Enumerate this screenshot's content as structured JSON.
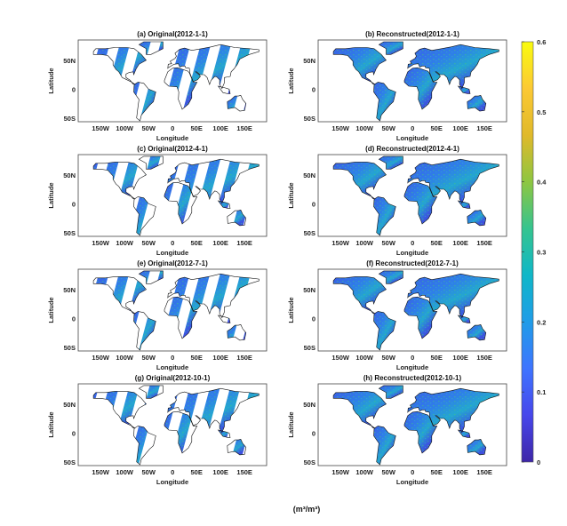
{
  "chart_data": {
    "type": "heatmap",
    "description_units": "(m³/m³)",
    "xlabel": "Longitude",
    "ylabel": "Latitude",
    "xlim": [
      -180,
      180
    ],
    "ylim": [
      -60,
      85
    ],
    "x_ticks": [
      {
        "value": -150,
        "label": "150W"
      },
      {
        "value": -100,
        "label": "100W"
      },
      {
        "value": -50,
        "label": "50W"
      },
      {
        "value": 0,
        "label": "0"
      },
      {
        "value": 50,
        "label": "50E"
      },
      {
        "value": 100,
        "label": "100E"
      },
      {
        "value": 150,
        "label": "150E"
      }
    ],
    "y_ticks": [
      {
        "value": 50,
        "label": "50N"
      },
      {
        "value": 0,
        "label": "0"
      },
      {
        "value": -50,
        "label": "50S"
      }
    ],
    "panels": [
      {
        "title": "(a) Original(2012-1-1)",
        "kind": "original"
      },
      {
        "title": "(b) Reconstructed(2012-1-1)",
        "kind": "reconstructed"
      },
      {
        "title": "(c) Original(2012-4-1)",
        "kind": "original"
      },
      {
        "title": "(d) Reconstructed(2012-4-1)",
        "kind": "reconstructed"
      },
      {
        "title": "(e) Original(2012-7-1)",
        "kind": "original"
      },
      {
        "title": "(f) Reconstructed(2012-7-1)",
        "kind": "reconstructed"
      },
      {
        "title": "(g) Original(2012-10-1)",
        "kind": "original"
      },
      {
        "title": "(h) Reconstructed(2012-10-1)",
        "kind": "reconstructed"
      }
    ],
    "colorbar": {
      "range": [
        0,
        0.6
      ],
      "ticks": [
        "0",
        "0.1",
        "0.2",
        "0.3",
        "0.4",
        "0.5",
        "0.6"
      ],
      "colors": [
        "#3e26a8",
        "#4746eb",
        "#3e74ff",
        "#1f9ce8",
        "#0fb7c8",
        "#35c48f",
        "#8ec641",
        "#e0b92a",
        "#fcc934",
        "#f9fb0e"
      ],
      "units_label": "(m³/m³)"
    }
  }
}
